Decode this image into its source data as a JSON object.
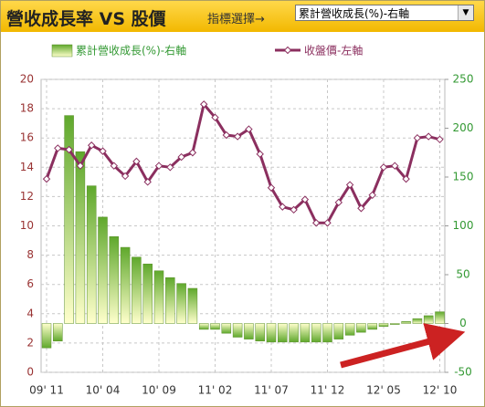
{
  "header": {
    "title": "營收成長率 VS 股價",
    "selector_label": "指標選擇→",
    "dropdown": "累計營收成長(%)-右軸"
  },
  "chart_data": {
    "type": "bar-line",
    "categories": [
      "09' 11",
      null,
      null,
      null,
      null,
      "10' 04",
      null,
      null,
      null,
      null,
      "10' 09",
      null,
      null,
      null,
      null,
      "11' 02",
      null,
      null,
      null,
      null,
      "11' 07",
      null,
      null,
      null,
      null,
      "11' 12",
      null,
      null,
      null,
      null,
      "12' 05",
      null,
      null,
      null,
      null,
      "12' 10"
    ],
    "series": [
      {
        "name": "累計營收成長(%)-右軸",
        "type": "bar",
        "axis": "y2",
        "color": "#5fa82c",
        "values": [
          -25,
          -18,
          213,
          176,
          141,
          109,
          89,
          78,
          68,
          61,
          54,
          47,
          41,
          36,
          -6,
          -6,
          -10,
          -14,
          -16,
          -18,
          -19,
          -19,
          -19,
          -19,
          -19,
          -19,
          -16,
          -12,
          -9,
          -6,
          -3,
          -1,
          2,
          5,
          8,
          12
        ]
      },
      {
        "name": "收盤價-左軸",
        "type": "line",
        "axis": "y",
        "color": "#8b2f5f",
        "values": [
          13.2,
          15.3,
          15.2,
          14.1,
          15.5,
          15.1,
          14.1,
          13.4,
          14.4,
          13.0,
          14.1,
          14.0,
          14.7,
          15.0,
          18.3,
          17.4,
          16.2,
          16.1,
          16.6,
          14.9,
          12.6,
          11.3,
          11.1,
          11.8,
          10.2,
          10.2,
          11.6,
          12.8,
          11.2,
          12.1,
          14.0,
          14.1,
          13.2,
          16.0,
          16.1,
          15.9
        ]
      }
    ],
    "ylim": [
      0,
      20
    ],
    "yticks": [
      0,
      2,
      4,
      6,
      8,
      10,
      12,
      14,
      16,
      18,
      20
    ],
    "y2lim": [
      -50,
      250
    ],
    "y2ticks": [
      -50,
      0,
      50,
      100,
      150,
      200,
      250
    ],
    "grid": true,
    "legend": "top"
  }
}
